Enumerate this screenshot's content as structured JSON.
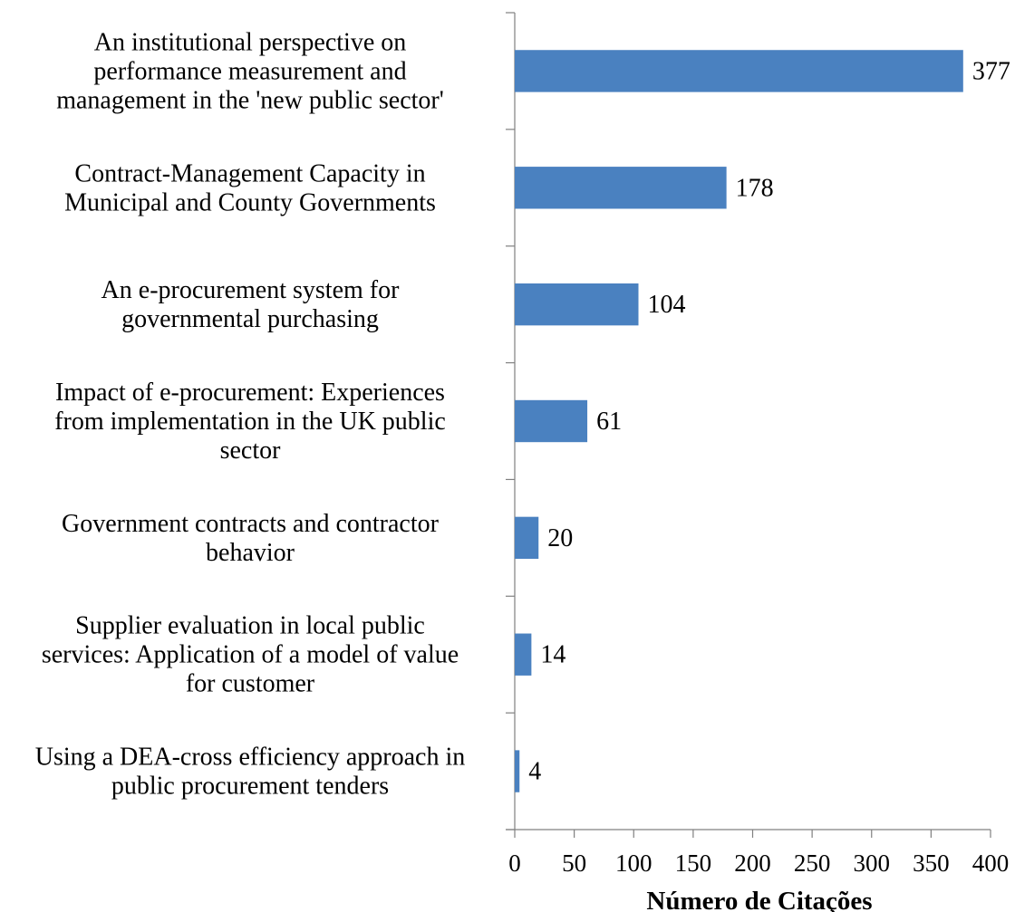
{
  "chart_data": {
    "type": "bar",
    "orientation": "horizontal",
    "title": "",
    "xlabel": "Número de Citações",
    "ylabel": "",
    "xlim": [
      0,
      400
    ],
    "xticks": [
      "0",
      "50",
      "100",
      "150",
      "200",
      "250",
      "300",
      "350",
      "400"
    ],
    "xtick_values": [
      0,
      50,
      100,
      150,
      200,
      250,
      300,
      350,
      400
    ],
    "grid": false,
    "bar_color": "#4a81c0",
    "categories": [
      [
        "An institutional perspective on",
        "performance measurement and",
        "management in the 'new public sector'"
      ],
      [
        "Contract-Management Capacity in",
        "Municipal and County Governments"
      ],
      [
        "An e-procurement system for",
        "governmental purchasing"
      ],
      [
        "Impact of e-procurement: Experiences",
        "from implementation in the UK public",
        "sector"
      ],
      [
        "Government contracts and contractor",
        "behavior"
      ],
      [
        "Supplier evaluation in local public",
        "services: Application of a model of value",
        "for customer"
      ],
      [
        "Using a DEA-cross efficiency approach in",
        "public procurement tenders"
      ]
    ],
    "values": [
      377,
      178,
      104,
      61,
      20,
      14,
      4
    ],
    "data_labels": [
      "377",
      "178",
      "104",
      "61",
      "20",
      "14",
      "4"
    ]
  }
}
